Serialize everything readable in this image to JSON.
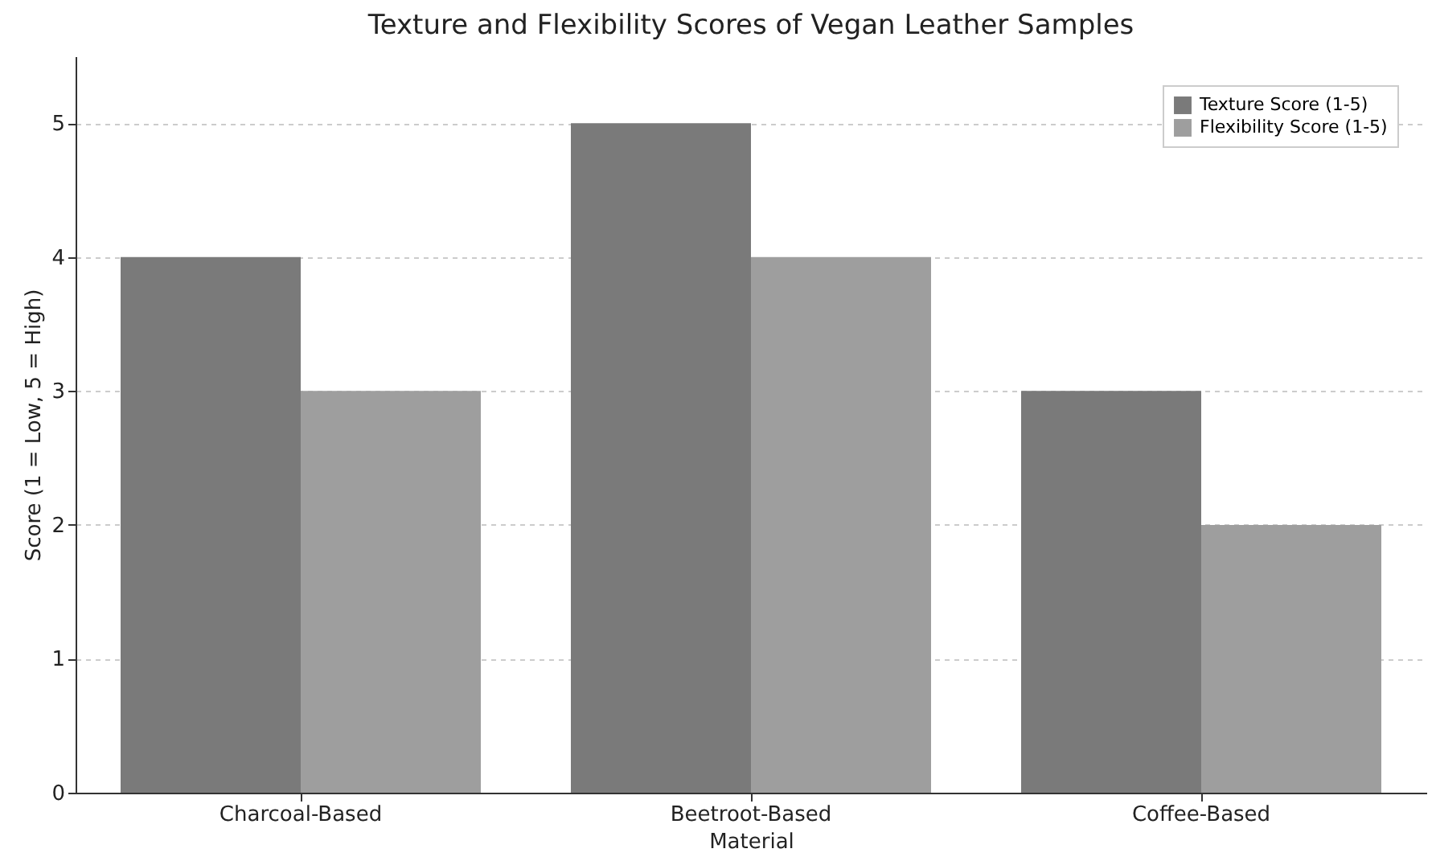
{
  "chart_data": {
    "type": "bar",
    "title": "Texture and Flexibility Scores of Vegan Leather Samples",
    "xlabel": "Material",
    "ylabel": "Score (1 = Low, 5 = High)",
    "categories": [
      "Charcoal-Based",
      "Beetroot-Based",
      "Coffee-Based"
    ],
    "series": [
      {
        "name": "Texture Score (1-5)",
        "color": "#7a7a7a",
        "values": [
          4,
          5,
          3
        ]
      },
      {
        "name": "Flexibility Score (1-5)",
        "color": "#9e9e9e",
        "values": [
          3,
          4,
          2
        ]
      }
    ],
    "ylim": [
      0,
      5.5
    ],
    "yticks": [
      0,
      1,
      2,
      3,
      4,
      5
    ],
    "grid": "y",
    "legend": "top right"
  }
}
